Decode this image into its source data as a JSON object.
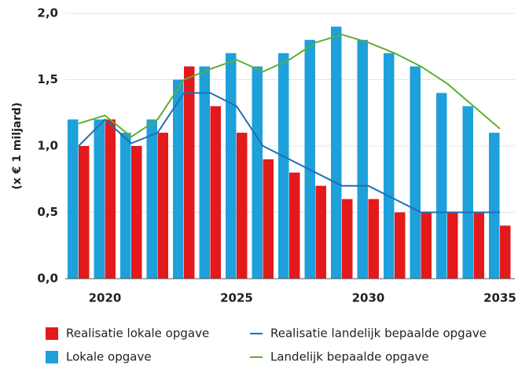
{
  "chart_data": {
    "type": "bar",
    "y_label": "(x € 1 miljard)",
    "categories": [
      null,
      "2020",
      null,
      null,
      null,
      null,
      "2025",
      null,
      null,
      null,
      null,
      "2030",
      null,
      null,
      null,
      null,
      "2035"
    ],
    "ylim": [
      0,
      2
    ],
    "yticks": [
      {
        "value": 0,
        "label": "0,0"
      },
      {
        "value": 0.5,
        "label": "0,5"
      },
      {
        "value": 1,
        "label": "1,0"
      },
      {
        "value": 1.5,
        "label": "1,5"
      },
      {
        "value": 2,
        "label": "2,0"
      }
    ],
    "grid": true,
    "series": [
      {
        "name": "Realisatie lokale opgave",
        "type": "bar",
        "color": "#e3191b",
        "values": [
          1.0,
          1.2,
          1.0,
          1.1,
          1.6,
          1.3,
          1.1,
          0.9,
          0.8,
          0.7,
          0.6,
          0.6,
          0.5,
          0.5,
          0.5,
          0.5,
          0.4
        ]
      },
      {
        "name": "Lokale opgave",
        "type": "bar",
        "color": "#1ea0db",
        "values": [
          1.2,
          1.2,
          1.1,
          1.2,
          1.5,
          1.6,
          1.7,
          1.6,
          1.7,
          1.8,
          1.9,
          1.8,
          1.7,
          1.6,
          1.4,
          1.3,
          1.1
        ]
      },
      {
        "name": "Realisatie landelijk bepaalde opgave",
        "type": "line",
        "color": "#1f6fb5",
        "values": [
          1.0,
          1.2,
          1.02,
          1.1,
          1.4,
          1.4,
          1.3,
          1.0,
          0.9,
          0.8,
          0.7,
          0.7,
          0.6,
          0.5,
          0.5,
          0.5,
          0.5
        ]
      },
      {
        "name": "Landelijk bepaalde opgave",
        "type": "line",
        "color": "#5ab031",
        "values": [
          1.17,
          1.23,
          1.07,
          1.2,
          1.5,
          1.58,
          1.65,
          1.56,
          1.65,
          1.78,
          1.84,
          1.78,
          1.7,
          1.6,
          1.47,
          1.3,
          1.13
        ]
      }
    ]
  }
}
